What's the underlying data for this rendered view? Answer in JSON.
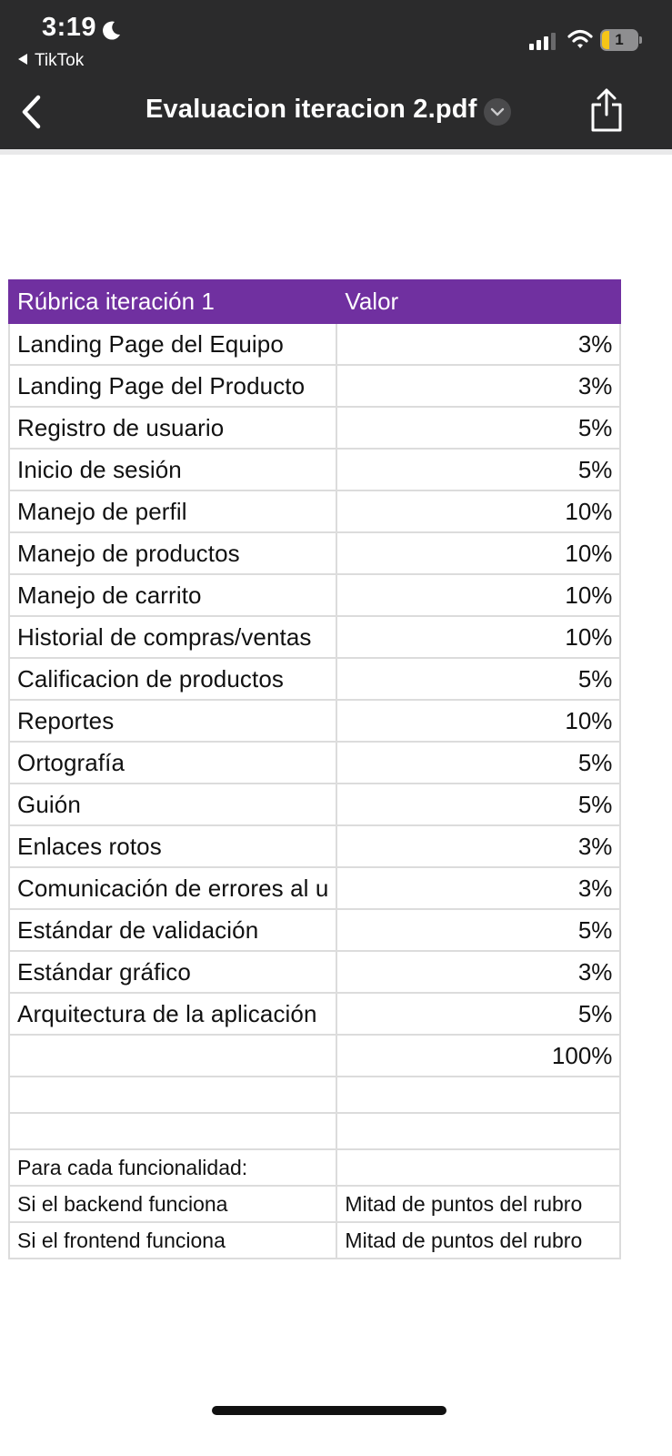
{
  "status_bar": {
    "time": "3:19",
    "back_app": "TikTok",
    "battery_level": "1"
  },
  "nav": {
    "title": "Evaluacion iteracion 2.pdf"
  },
  "table": {
    "header": {
      "col1": "Rúbrica iteración 1",
      "col2": "Valor"
    },
    "rows": [
      {
        "label": "Landing Page del Equipo",
        "value": "3%"
      },
      {
        "label": "Landing Page del Producto",
        "value": "3%"
      },
      {
        "label": "Registro de usuario",
        "value": "5%"
      },
      {
        "label": "Inicio de sesión",
        "value": "5%"
      },
      {
        "label": "Manejo de perfil",
        "value": "10%"
      },
      {
        "label": "Manejo de productos",
        "value": "10%"
      },
      {
        "label": "Manejo de carrito",
        "value": "10%"
      },
      {
        "label": "Historial de compras/ventas",
        "value": "10%"
      },
      {
        "label": "Calificacion de productos",
        "value": "5%"
      },
      {
        "label": "Reportes",
        "value": "10%"
      },
      {
        "label": "Ortografía",
        "value": "5%"
      },
      {
        "label": "Guión",
        "value": "5%"
      },
      {
        "label": "Enlaces rotos",
        "value": "3%"
      },
      {
        "label": "Comunicación de errores al u",
        "value": "3%"
      },
      {
        "label": "Estándar de validación",
        "value": "5%"
      },
      {
        "label": "Estándar gráfico",
        "value": "3%"
      },
      {
        "label": "Arquitectura de la aplicación",
        "value": "5%"
      }
    ],
    "total": "100%",
    "notes": {
      "intro": "Para cada funcionalidad:",
      "rows": [
        {
          "label": "Si el backend funciona",
          "value": "Mitad de puntos del rubro"
        },
        {
          "label": "Si el frontend funciona",
          "value": "Mitad de puntos del rubro"
        }
      ]
    }
  },
  "colors": {
    "header_bg": "#7030a0",
    "bar_bg": "#2b2b2c"
  }
}
